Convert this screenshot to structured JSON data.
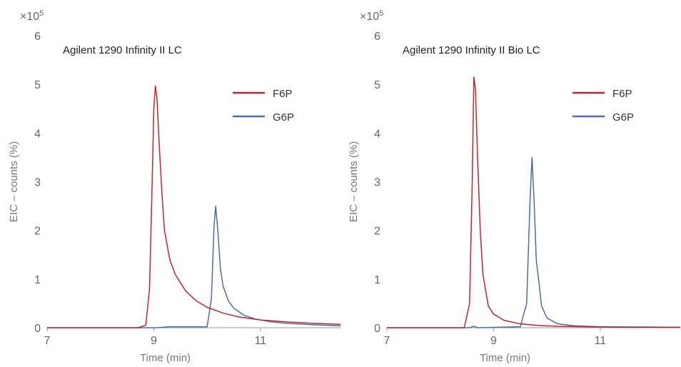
{
  "chart_data": [
    {
      "type": "line",
      "title": "Agilent 1290 Infinity II LC",
      "xlabel": "Time (min)",
      "ylabel": "EIC – counts (%)",
      "y_multiplier_label": "×10",
      "y_multiplier_exp": "5",
      "xlim": [
        7,
        12.5
      ],
      "ylim": [
        0,
        6
      ],
      "x_ticks": [
        7,
        9,
        11
      ],
      "y_ticks": [
        0,
        1,
        2,
        3,
        4,
        5,
        6
      ],
      "grid": false,
      "legend_position": "top-right",
      "series": [
        {
          "name": "F6P",
          "color": "#c0262d",
          "x": [
            7.0,
            8.7,
            8.85,
            8.92,
            8.97,
            9.0,
            9.03,
            9.06,
            9.1,
            9.15,
            9.2,
            9.3,
            9.4,
            9.6,
            9.8,
            10.0,
            10.3,
            10.6,
            11.0,
            11.5,
            12.0,
            12.5
          ],
          "y": [
            0.0,
            0.0,
            0.05,
            0.8,
            3.0,
            4.5,
            4.97,
            4.7,
            3.8,
            2.8,
            2.0,
            1.4,
            1.1,
            0.75,
            0.55,
            0.42,
            0.3,
            0.22,
            0.16,
            0.12,
            0.09,
            0.07
          ]
        },
        {
          "name": "G6P",
          "color": "#4a6fa5",
          "x": [
            7.0,
            9.05,
            9.3,
            10.0,
            10.08,
            10.13,
            10.16,
            10.2,
            10.25,
            10.3,
            10.4,
            10.5,
            10.7,
            10.9,
            11.2,
            11.5,
            12.0,
            12.5
          ],
          "y": [
            0.0,
            0.0,
            0.02,
            0.02,
            0.6,
            2.1,
            2.5,
            2.0,
            1.2,
            0.85,
            0.55,
            0.4,
            0.25,
            0.18,
            0.12,
            0.09,
            0.06,
            0.04
          ]
        }
      ]
    },
    {
      "type": "line",
      "title": "Agilent 1290 Infinity II Bio LC",
      "xlabel": "Time (min)",
      "ylabel": "EIC – counts (%)",
      "y_multiplier_label": "×10",
      "y_multiplier_exp": "5",
      "xlim": [
        7,
        12.5
      ],
      "ylim": [
        0,
        6
      ],
      "x_ticks": [
        7,
        9,
        11
      ],
      "y_ticks": [
        0,
        1,
        2,
        3,
        4,
        5,
        6
      ],
      "grid": false,
      "legend_position": "top-right",
      "series": [
        {
          "name": "F6P",
          "color": "#c0262d",
          "x": [
            7.0,
            8.45,
            8.55,
            8.6,
            8.63,
            8.66,
            8.7,
            8.75,
            8.8,
            8.9,
            9.0,
            9.2,
            9.5,
            9.8,
            10.2,
            10.7,
            11.5,
            12.5
          ],
          "y": [
            0.0,
            0.0,
            0.5,
            3.0,
            5.15,
            4.9,
            3.5,
            2.0,
            1.1,
            0.45,
            0.28,
            0.15,
            0.08,
            0.05,
            0.03,
            0.02,
            0.01,
            0.01
          ]
        },
        {
          "name": "G6P",
          "color": "#4a6fa5",
          "x": [
            7.0,
            8.55,
            8.63,
            8.7,
            9.5,
            9.62,
            9.68,
            9.72,
            9.76,
            9.8,
            9.9,
            10.0,
            10.2,
            10.5,
            11.0,
            12.5
          ],
          "y": [
            0.0,
            0.0,
            0.03,
            0.0,
            0.02,
            0.5,
            2.5,
            3.5,
            2.6,
            1.4,
            0.45,
            0.2,
            0.08,
            0.04,
            0.02,
            0.01
          ]
        }
      ]
    }
  ]
}
